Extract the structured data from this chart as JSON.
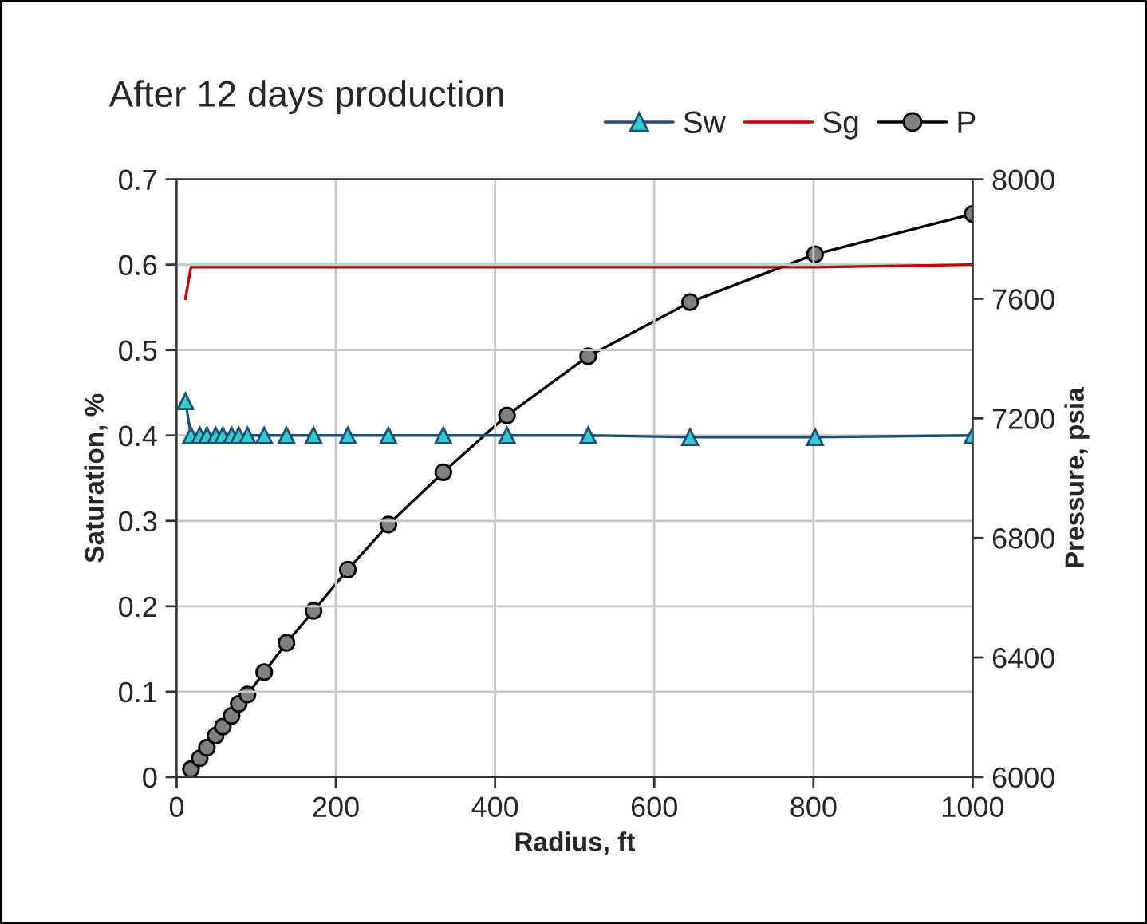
{
  "chart_data": {
    "type": "line",
    "title": "After 12 days production",
    "xlabel": "Radius, ft",
    "ylabel": "Saturation, %",
    "y2label": "Pressure, psia",
    "xlim": [
      0,
      1000
    ],
    "xticks": [
      0,
      200,
      400,
      600,
      800,
      1000
    ],
    "ylim": [
      0,
      0.7
    ],
    "yticks": [
      0,
      0.1,
      0.2,
      0.3,
      0.4,
      0.5,
      0.6,
      0.7
    ],
    "y2lim": [
      6000,
      8000
    ],
    "y2ticks": [
      6000,
      6400,
      6800,
      7200,
      7600,
      8000
    ],
    "grid": true,
    "legend": "top right",
    "series": [
      {
        "name": "Sw",
        "color": "#33cccc",
        "marker": "triangle",
        "x": [
          11,
          18,
          29,
          38,
          49,
          58,
          69,
          78,
          89,
          110,
          138,
          172,
          215,
          266,
          335,
          415,
          517,
          645,
          802,
          1000
        ],
        "values": [
          0.44,
          0.4,
          0.4,
          0.4,
          0.4,
          0.4,
          0.4,
          0.4,
          0.4,
          0.4,
          0.4,
          0.4,
          0.4,
          0.4,
          0.4,
          0.4,
          0.4,
          0.398,
          0.398,
          0.4
        ]
      },
      {
        "name": "Sg",
        "color": "#c00000",
        "x": [
          11,
          18,
          29,
          38,
          49,
          58,
          69,
          78,
          89,
          110,
          138,
          172,
          215,
          266,
          335,
          415,
          517,
          645,
          802,
          1000
        ],
        "values": [
          0.56,
          0.597,
          0.597,
          0.597,
          0.597,
          0.597,
          0.597,
          0.597,
          0.597,
          0.597,
          0.597,
          0.597,
          0.597,
          0.597,
          0.597,
          0.597,
          0.597,
          0.597,
          0.597,
          0.6
        ]
      },
      {
        "name": "P",
        "color": "#808080",
        "marker": "circle",
        "axis": "y2",
        "x": [
          18,
          29,
          38,
          49,
          58,
          69,
          78,
          89,
          110,
          138,
          172,
          215,
          266,
          335,
          415,
          517,
          645,
          802,
          1000
        ],
        "values": [
          6027,
          6063,
          6098,
          6139,
          6169,
          6205,
          6245,
          6276,
          6351,
          6449,
          6556,
          6694,
          6845,
          7020,
          7210,
          7408,
          7589,
          7749,
          7884
        ]
      }
    ]
  }
}
